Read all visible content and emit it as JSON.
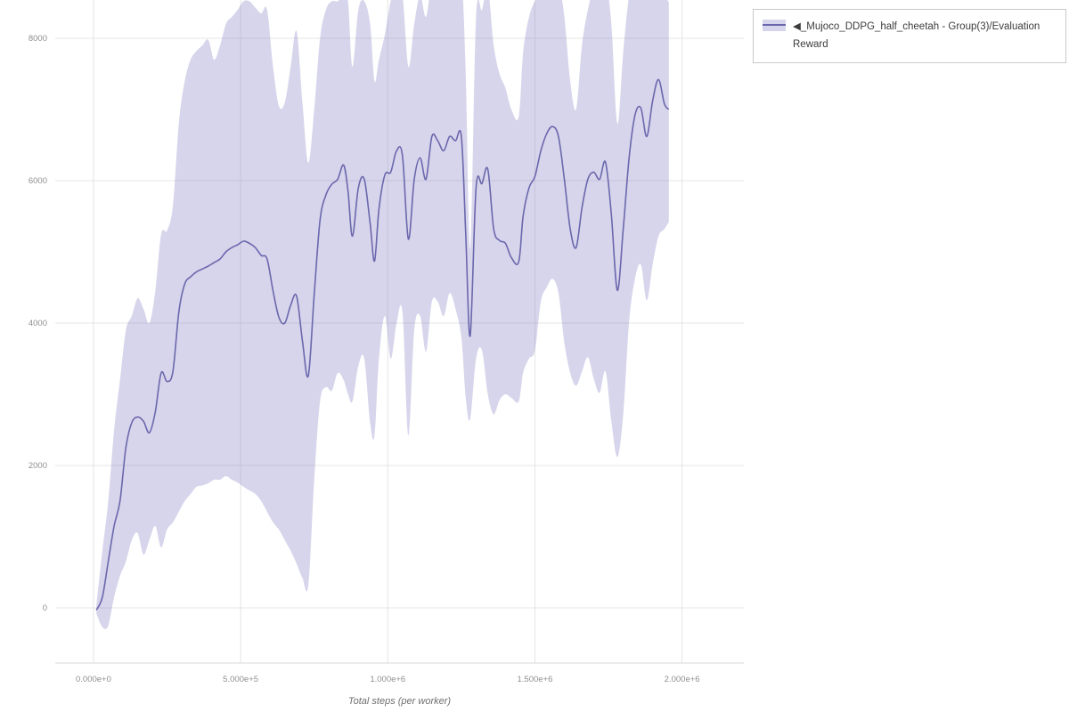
{
  "legend": {},
  "chart_data": {
    "type": "line",
    "title": "",
    "xlabel": "Total steps (per worker)",
    "ylabel": "",
    "grid": true,
    "legend_position": "top-right-outside",
    "xlim": [
      -130000,
      2210000
    ],
    "ylim": [
      -775,
      8537
    ],
    "x_ticks": {
      "values": [
        0,
        500000,
        1000000,
        1500000,
        2000000
      ],
      "labels": [
        "0.000e+0",
        "5.000e+5",
        "1.000e+6",
        "1.500e+6",
        "2.000e+6"
      ]
    },
    "y_ticks": {
      "values": [
        0,
        2000,
        4000,
        6000,
        8000
      ],
      "labels": [
        "0",
        "2000",
        "4000",
        "6000",
        "8000"
      ]
    },
    "colors": {
      "line": "#6a67ad",
      "band": "#8b87c6",
      "band_opacity": 0.35,
      "grid": "#e4e4e4",
      "axis_border": "#d9d9d9",
      "tick_text": "#8f8f8f"
    },
    "series": [
      {
        "name": "◀_Mujoco_DDPG_half_cheetah - Group(3)/Evaluation Reward",
        "x": [
          10000,
          30000,
          50000,
          70000,
          90000,
          110000,
          130000,
          150000,
          170000,
          190000,
          210000,
          230000,
          250000,
          270000,
          290000,
          310000,
          330000,
          350000,
          370000,
          390000,
          410000,
          430000,
          450000,
          470000,
          490000,
          510000,
          530000,
          550000,
          570000,
          590000,
          610000,
          630000,
          650000,
          670000,
          690000,
          710000,
          730000,
          750000,
          770000,
          790000,
          810000,
          830000,
          850000,
          865000,
          880000,
          900000,
          920000,
          940000,
          955000,
          970000,
          990000,
          1010000,
          1030000,
          1050000,
          1070000,
          1090000,
          1110000,
          1130000,
          1150000,
          1170000,
          1190000,
          1210000,
          1230000,
          1250000,
          1265000,
          1280000,
          1300000,
          1320000,
          1340000,
          1360000,
          1380000,
          1400000,
          1420000,
          1445000,
          1460000,
          1480000,
          1500000,
          1520000,
          1540000,
          1560000,
          1580000,
          1600000,
          1620000,
          1640000,
          1660000,
          1680000,
          1700000,
          1720000,
          1740000,
          1760000,
          1780000,
          1800000,
          1820000,
          1840000,
          1860000,
          1880000,
          1900000,
          1920000,
          1940000,
          1955000
        ],
        "mean": [
          -30,
          150,
          650,
          1150,
          1500,
          2250,
          2600,
          2680,
          2620,
          2460,
          2750,
          3300,
          3180,
          3320,
          4150,
          4550,
          4650,
          4720,
          4760,
          4800,
          4850,
          4900,
          5000,
          5060,
          5100,
          5150,
          5120,
          5060,
          4950,
          4900,
          4450,
          4080,
          4000,
          4250,
          4380,
          3750,
          3260,
          4400,
          5450,
          5800,
          5950,
          6020,
          6220,
          5850,
          5220,
          5900,
          6020,
          5400,
          4870,
          5600,
          6080,
          6120,
          6420,
          6350,
          5180,
          6020,
          6320,
          6020,
          6620,
          6560,
          6420,
          6620,
          6560,
          6620,
          5250,
          3820,
          5900,
          5960,
          6160,
          5320,
          5160,
          5120,
          4920,
          4860,
          5500,
          5900,
          6060,
          6420,
          6660,
          6760,
          6620,
          6020,
          5320,
          5060,
          5620,
          6020,
          6120,
          6020,
          6260,
          5520,
          4460,
          5320,
          6320,
          6920,
          7020,
          6620,
          7120,
          7420,
          7080,
          7000
        ],
        "low": [
          -80,
          -270,
          -250,
          150,
          450,
          650,
          950,
          1050,
          750,
          950,
          1150,
          850,
          1100,
          1200,
          1350,
          1500,
          1600,
          1700,
          1720,
          1750,
          1800,
          1800,
          1850,
          1800,
          1760,
          1700,
          1650,
          1600,
          1500,
          1350,
          1200,
          1100,
          950,
          800,
          620,
          420,
          320,
          1800,
          2900,
          3100,
          3050,
          3300,
          3200,
          3000,
          2900,
          3400,
          3500,
          2600,
          2420,
          3500,
          4100,
          3500,
          4000,
          4150,
          2420,
          3900,
          4100,
          3600,
          4300,
          4300,
          4100,
          4420,
          4200,
          3800,
          2950,
          2650,
          3500,
          3620,
          3000,
          2720,
          2920,
          3000,
          2950,
          2900,
          3300,
          3500,
          3620,
          4300,
          4500,
          4620,
          4420,
          3720,
          3300,
          3120,
          3320,
          3520,
          3220,
          3020,
          3320,
          2620,
          2120,
          2720,
          4020,
          4620,
          4820,
          4320,
          4820,
          5220,
          5320,
          5420
        ],
        "high": [
          40,
          800,
          1500,
          2500,
          3200,
          3900,
          4100,
          4350,
          4200,
          4000,
          4450,
          5250,
          5300,
          5650,
          6800,
          7400,
          7700,
          7820,
          7900,
          7980,
          7700,
          7900,
          8200,
          8300,
          8400,
          8520,
          8520,
          8430,
          8350,
          8400,
          7600,
          7050,
          7100,
          7600,
          8100,
          7100,
          6250,
          7000,
          8000,
          8400,
          8520,
          8520,
          8600,
          8520,
          7600,
          8400,
          8520,
          8200,
          7400,
          7700,
          8050,
          8520,
          8700,
          8600,
          7600,
          8200,
          8600,
          8300,
          8800,
          8700,
          8600,
          8800,
          8700,
          8900,
          7500,
          5050,
          8300,
          8400,
          8700,
          7900,
          7500,
          7300,
          7000,
          6900,
          7800,
          8300,
          8520,
          8600,
          8800,
          8900,
          8800,
          8300,
          7400,
          7000,
          7900,
          8400,
          8700,
          8700,
          8800,
          8200,
          6800,
          7800,
          8600,
          8900,
          9000,
          8800,
          9200,
          9400,
          8700,
          8500
        ]
      }
    ]
  }
}
